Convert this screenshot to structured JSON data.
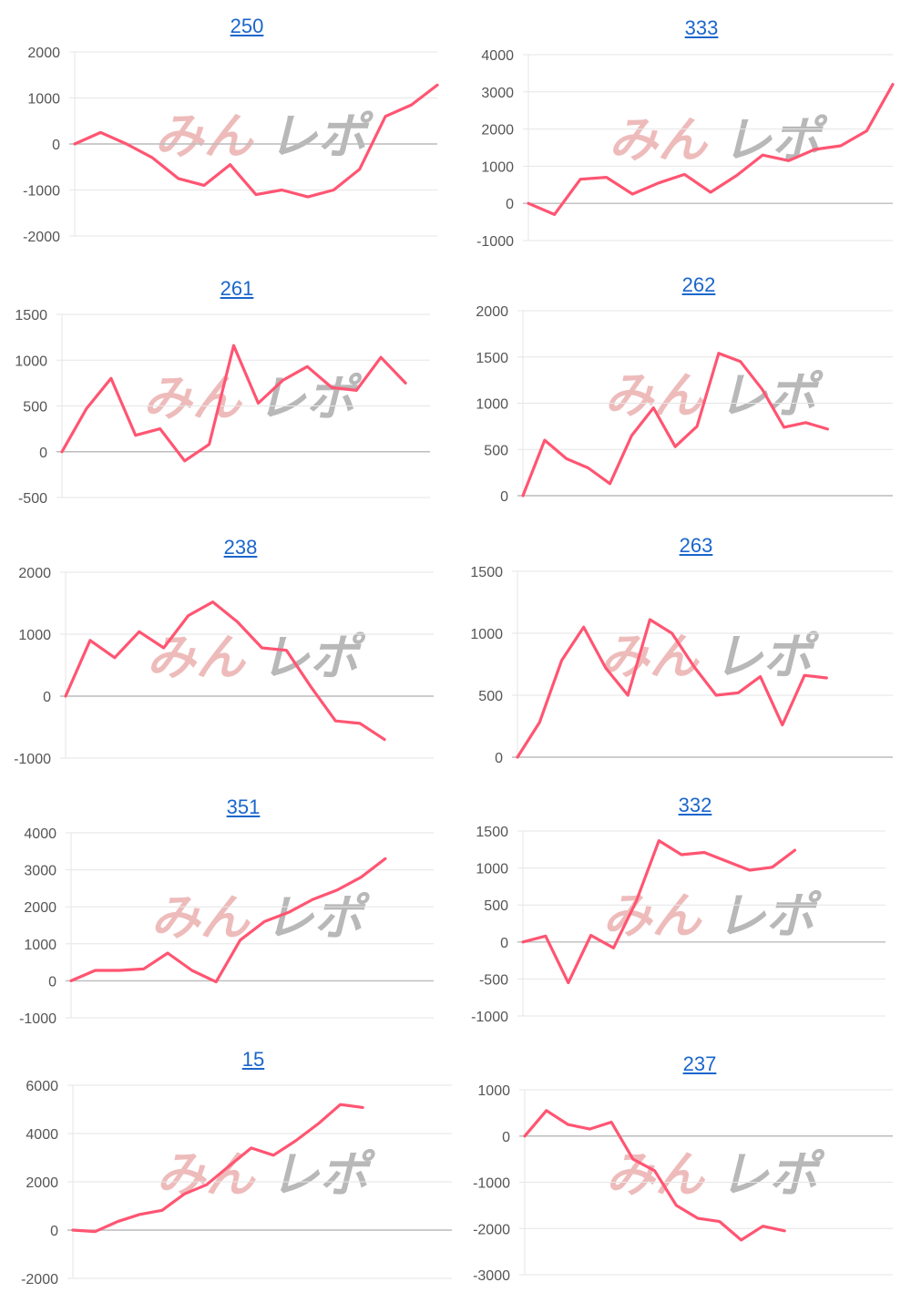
{
  "colors": {
    "line": "#ff5572",
    "grid": "#e6e6e6",
    "zero_line": "#bcbcbc",
    "title": "#1a66cc",
    "watermark_left": "#eebbbb",
    "watermark_right": "#b8b8b8"
  },
  "watermark": {
    "icon": "minrepo-watermark-logo",
    "text_left": "みん",
    "text_right": "レポ"
  },
  "chart_data": [
    {
      "type": "line",
      "title": "250",
      "yticks": [
        2000,
        1000,
        0,
        -1000,
        -2000
      ],
      "ylim": [
        -2000,
        2000
      ],
      "grid": true,
      "values": [
        0,
        250,
        0,
        -300,
        -750,
        -900,
        -450,
        -1100,
        -1000,
        -1150,
        -1000,
        -550,
        600,
        850,
        1280
      ]
    },
    {
      "type": "line",
      "title": "333",
      "yticks": [
        4000,
        3000,
        2000,
        1000,
        0,
        -1000
      ],
      "ylim": [
        -1000,
        4000
      ],
      "grid": true,
      "values": [
        0,
        -300,
        650,
        700,
        250,
        550,
        780,
        300,
        750,
        1300,
        1150,
        1450,
        1550,
        1950,
        3200
      ]
    },
    {
      "type": "line",
      "title": "261",
      "yticks": [
        1500,
        1000,
        500,
        0,
        -500
      ],
      "ylim": [
        -500,
        1500
      ],
      "grid": true,
      "values": [
        0,
        470,
        800,
        180,
        250,
        -100,
        80,
        1160,
        530,
        780,
        930,
        700,
        670,
        1030,
        750
      ]
    },
    {
      "type": "line",
      "title": "262",
      "yticks": [
        2000,
        1500,
        1000,
        500,
        0
      ],
      "ylim": [
        0,
        2000
      ],
      "grid": true,
      "values": [
        0,
        600,
        400,
        300,
        130,
        650,
        950,
        530,
        750,
        1540,
        1450,
        1150,
        740,
        790,
        720
      ]
    },
    {
      "type": "line",
      "title": "238",
      "yticks": [
        2000,
        1000,
        0,
        -1000
      ],
      "ylim": [
        -1000,
        2000
      ],
      "grid": true,
      "values": [
        0,
        900,
        620,
        1040,
        780,
        1300,
        1520,
        1200,
        780,
        740,
        150,
        -400,
        -440,
        -700
      ]
    },
    {
      "type": "line",
      "title": "263",
      "yticks": [
        1500,
        1000,
        500,
        0
      ],
      "ylim": [
        0,
        1500
      ],
      "grid": true,
      "values": [
        0,
        280,
        780,
        1050,
        720,
        500,
        1110,
        1000,
        730,
        500,
        520,
        650,
        260,
        660,
        640
      ]
    },
    {
      "type": "line",
      "title": "351",
      "yticks": [
        4000,
        3000,
        2000,
        1000,
        0,
        -1000
      ],
      "ylim": [
        -1000,
        4000
      ],
      "grid": true,
      "values": [
        0,
        280,
        280,
        320,
        750,
        280,
        -30,
        1100,
        1600,
        1850,
        2200,
        2450,
        2800,
        3300
      ]
    },
    {
      "type": "line",
      "title": "332",
      "yticks": [
        1500,
        1000,
        500,
        0,
        -500,
        -1000
      ],
      "ylim": [
        -1000,
        1500
      ],
      "grid": true,
      "values": [
        0,
        80,
        -550,
        90,
        -80,
        550,
        1370,
        1180,
        1210,
        1090,
        970,
        1010,
        1240
      ]
    },
    {
      "type": "line",
      "title": "15",
      "yticks": [
        6000,
        4000,
        2000,
        0,
        -2000
      ],
      "ylim": [
        -2000,
        6000
      ],
      "grid": true,
      "values": [
        0,
        -60,
        350,
        650,
        820,
        1500,
        1880,
        2650,
        3400,
        3100,
        3700,
        4400,
        5200,
        5080
      ]
    },
    {
      "type": "line",
      "title": "237",
      "yticks": [
        1000,
        0,
        -1000,
        -2000,
        -3000
      ],
      "ylim": [
        -3000,
        1000
      ],
      "grid": true,
      "values": [
        0,
        550,
        250,
        150,
        300,
        -500,
        -750,
        -1500,
        -1780,
        -1850,
        -2250,
        -1950,
        -2050
      ]
    }
  ]
}
